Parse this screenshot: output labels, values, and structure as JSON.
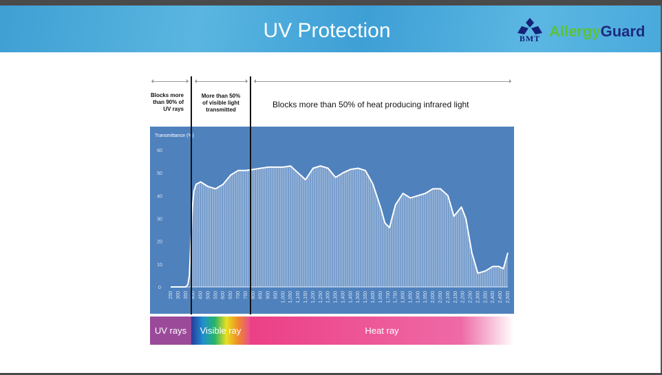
{
  "header": {
    "title": "UV Protection",
    "logo_mark": "BMT",
    "brand_part1": "Allergy",
    "brand_part2": "Guard"
  },
  "annotations": {
    "uv": "Blocks more than 90% of UV rays",
    "visible": "More than 50% of visible light transmitted",
    "ir": "Blocks more than 50% of heat producing infrared light"
  },
  "bands": {
    "uv": "UV rays",
    "visible": "Visible ray",
    "heat": "Heat ray"
  },
  "colors": {
    "chart_bg": "#4f81bd",
    "uv": "#9b4a9a",
    "heat": "#ec3f86"
  },
  "chart_data": {
    "type": "area",
    "ylabel": "Transmittance (%)",
    "xlabel": "",
    "ylim": [
      0,
      60
    ],
    "yticks": [
      0,
      10,
      20,
      30,
      40,
      50,
      60
    ],
    "xlim": [
      250,
      2500
    ],
    "xticks": [
      "250",
      "300",
      "350",
      "400",
      "450",
      "500",
      "550",
      "600",
      "650",
      "700",
      "750",
      "800",
      "850",
      "900",
      "950",
      "1,000",
      "1,050",
      "1,100",
      "1,150",
      "1,200",
      "1,250",
      "1,300",
      "1,350",
      "1,400",
      "1,450",
      "1,500",
      "1,550",
      "1,600",
      "1,650",
      "1,700",
      "1,750",
      "1,800",
      "1,850",
      "1,900",
      "1,950",
      "2,000",
      "2,050",
      "2,100",
      "2,150",
      "2,200",
      "2,250",
      "2,300",
      "2,350",
      "2,400",
      "2,450",
      "2,500"
    ],
    "x": [
      250,
      350,
      365,
      375,
      385,
      395,
      405,
      420,
      450,
      500,
      550,
      600,
      650,
      700,
      750,
      800,
      900,
      1000,
      1050,
      1100,
      1150,
      1200,
      1250,
      1300,
      1350,
      1400,
      1450,
      1500,
      1550,
      1600,
      1650,
      1680,
      1710,
      1750,
      1800,
      1850,
      1900,
      1950,
      2000,
      2050,
      2100,
      2140,
      2190,
      2220,
      2260,
      2300,
      2350,
      2400,
      2440,
      2470,
      2500
    ],
    "y": [
      0,
      0,
      1,
      5,
      20,
      35,
      42,
      45,
      46,
      44,
      43,
      45,
      49,
      51,
      51,
      51.5,
      52.5,
      52.5,
      53,
      50,
      47,
      52,
      53,
      52,
      48,
      50,
      51.5,
      52,
      51,
      45,
      35,
      28,
      26,
      36,
      41,
      39,
      40,
      41,
      43,
      43,
      40,
      31,
      35,
      30,
      15,
      6,
      7,
      9,
      9,
      8,
      15
    ],
    "markers": [
      387,
      783
    ]
  }
}
